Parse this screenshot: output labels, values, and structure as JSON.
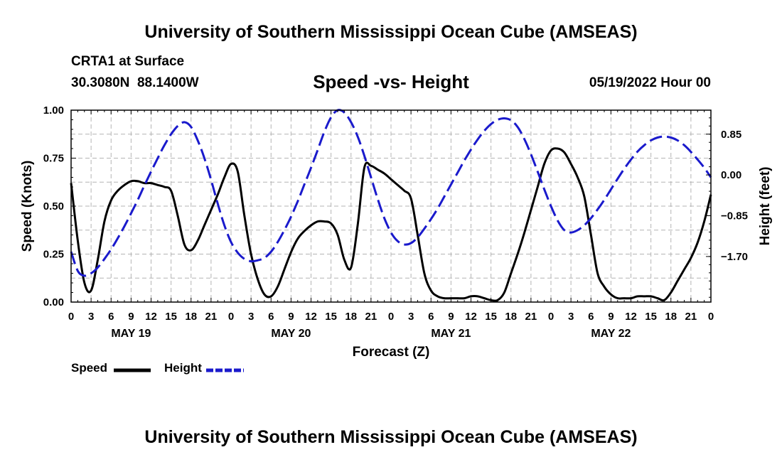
{
  "header": {
    "title": "University of Southern Mississippi Ocean Cube (AMSEAS)",
    "station": "CRTA1 at Surface",
    "coords": "30.3080N  88.1400W",
    "chart_title": "Speed -vs- Height",
    "datetime": "05/19/2022 Hour 00"
  },
  "legend": {
    "speed_label": "Speed",
    "height_label": "Height"
  },
  "footer": {
    "title": "University of Southern Mississippi Ocean Cube (AMSEAS)"
  },
  "colors": {
    "speed": "#000000",
    "height": "#1a1acc",
    "grid": "#b4b4b4"
  },
  "chart_data": {
    "type": "line",
    "title": "Speed -vs- Height",
    "xlabel": "Forecast (Z)",
    "ylabel": "Speed (Knots)",
    "y2label": "Height (feet)",
    "xlim": [
      0,
      96
    ],
    "ylim": [
      0,
      1.0
    ],
    "y2lim": [
      -2.65,
      1.35
    ],
    "x_tick_labels": [
      "0",
      "3",
      "6",
      "9",
      "12",
      "15",
      "18",
      "21",
      "0",
      "3",
      "6",
      "9",
      "12",
      "15",
      "18",
      "21",
      "0",
      "3",
      "6",
      "9",
      "12",
      "15",
      "18",
      "21",
      "0",
      "3",
      "6",
      "9",
      "12",
      "15",
      "18",
      "21",
      "0"
    ],
    "y_ticks": [
      0,
      0.25,
      0.5,
      0.75,
      1.0
    ],
    "y_tick_labels": [
      "0.00",
      "0.25",
      "0.50",
      "0.75",
      "1.00"
    ],
    "y2_ticks": [
      0.85,
      0.0,
      -0.85,
      -1.7
    ],
    "y2_tick_labels": [
      "0.85",
      "0.00",
      "−0.85",
      "−1.70"
    ],
    "date_labels": [
      {
        "x": 9,
        "label": "MAY 19"
      },
      {
        "x": 33,
        "label": "MAY 20"
      },
      {
        "x": 57,
        "label": "MAY 21"
      },
      {
        "x": 81,
        "label": "MAY 22"
      }
    ],
    "series": [
      {
        "name": "Speed",
        "axis": "left",
        "style": "solid",
        "x": [
          0,
          1,
          2,
          3,
          4,
          5,
          6,
          7,
          8,
          9,
          10,
          11,
          12,
          13,
          14,
          15,
          16,
          17,
          18,
          19,
          20,
          21,
          22,
          23,
          24,
          25,
          26,
          27,
          28,
          29,
          30,
          31,
          32,
          33,
          34,
          35,
          36,
          37,
          38,
          39,
          40,
          41,
          42,
          43,
          44,
          45,
          46,
          47,
          48,
          49,
          50,
          51,
          52,
          53,
          54,
          55,
          56,
          57,
          58,
          59,
          60,
          61,
          62,
          63,
          64,
          65,
          66,
          67,
          68,
          69,
          70,
          71,
          72,
          73,
          74,
          75,
          76,
          77,
          78,
          79,
          80,
          81,
          82,
          83,
          84,
          85,
          86,
          87,
          88,
          89,
          90,
          91,
          92,
          93,
          94,
          95,
          96
        ],
        "values": [
          0.62,
          0.32,
          0.1,
          0.06,
          0.22,
          0.42,
          0.53,
          0.58,
          0.61,
          0.63,
          0.63,
          0.62,
          0.62,
          0.61,
          0.6,
          0.58,
          0.45,
          0.3,
          0.27,
          0.32,
          0.4,
          0.48,
          0.56,
          0.65,
          0.72,
          0.68,
          0.45,
          0.25,
          0.12,
          0.04,
          0.03,
          0.08,
          0.17,
          0.26,
          0.33,
          0.37,
          0.4,
          0.42,
          0.42,
          0.41,
          0.35,
          0.22,
          0.18,
          0.4,
          0.7,
          0.71,
          0.69,
          0.67,
          0.64,
          0.61,
          0.58,
          0.54,
          0.35,
          0.15,
          0.06,
          0.03,
          0.02,
          0.02,
          0.02,
          0.02,
          0.03,
          0.03,
          0.02,
          0.01,
          0.01,
          0.05,
          0.15,
          0.25,
          0.36,
          0.48,
          0.6,
          0.72,
          0.79,
          0.8,
          0.78,
          0.72,
          0.65,
          0.55,
          0.35,
          0.15,
          0.08,
          0.04,
          0.02,
          0.02,
          0.02,
          0.03,
          0.03,
          0.03,
          0.02,
          0.01,
          0.05,
          0.11,
          0.17,
          0.23,
          0.31,
          0.42,
          0.56
        ]
      },
      {
        "name": "Height",
        "axis": "right",
        "style": "dashed",
        "x": [
          0,
          1,
          2,
          3,
          4,
          5,
          6,
          7,
          8,
          9,
          10,
          11,
          12,
          13,
          14,
          15,
          16,
          17,
          18,
          19,
          20,
          21,
          22,
          23,
          24,
          25,
          26,
          27,
          28,
          29,
          30,
          31,
          32,
          33,
          34,
          35,
          36,
          37,
          38,
          39,
          40,
          41,
          42,
          43,
          44,
          45,
          46,
          47,
          48,
          49,
          50,
          51,
          52,
          53,
          54,
          55,
          56,
          57,
          58,
          59,
          60,
          61,
          62,
          63,
          64,
          65,
          66,
          67,
          68,
          69,
          70,
          71,
          72,
          73,
          74,
          75,
          76,
          77,
          78,
          79,
          80,
          81,
          82,
          83,
          84,
          85,
          86,
          87,
          88,
          89,
          90,
          91,
          92,
          93,
          94,
          95,
          96
        ],
        "values": [
          -1.6,
          -2.0,
          -2.1,
          -2.05,
          -1.93,
          -1.75,
          -1.55,
          -1.32,
          -1.07,
          -0.8,
          -0.52,
          -0.22,
          0.07,
          0.35,
          0.62,
          0.85,
          1.02,
          1.1,
          1.0,
          0.72,
          0.35,
          -0.1,
          -0.6,
          -1.05,
          -1.4,
          -1.62,
          -1.75,
          -1.8,
          -1.78,
          -1.73,
          -1.6,
          -1.4,
          -1.15,
          -0.87,
          -0.55,
          -0.2,
          0.15,
          0.52,
          0.9,
          1.2,
          1.35,
          1.3,
          1.1,
          0.8,
          0.4,
          -0.05,
          -0.5,
          -0.9,
          -1.2,
          -1.38,
          -1.45,
          -1.42,
          -1.3,
          -1.12,
          -0.92,
          -0.7,
          -0.45,
          -0.2,
          0.05,
          0.3,
          0.53,
          0.74,
          0.92,
          1.06,
          1.15,
          1.18,
          1.14,
          1.0,
          0.75,
          0.43,
          0.07,
          -0.3,
          -0.65,
          -0.95,
          -1.15,
          -1.2,
          -1.15,
          -1.05,
          -0.9,
          -0.72,
          -0.52,
          -0.3,
          -0.08,
          0.13,
          0.32,
          0.49,
          0.62,
          0.72,
          0.78,
          0.8,
          0.78,
          0.72,
          0.62,
          0.48,
          0.32,
          0.15,
          -0.05
        ]
      }
    ]
  }
}
